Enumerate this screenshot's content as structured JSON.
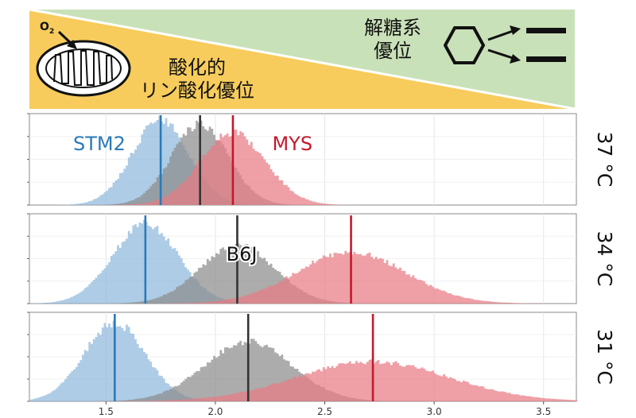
{
  "banner": {
    "left_label_line1": "酸化的",
    "left_label_line2": "リン酸化優位",
    "right_label_line1": "解糖系",
    "right_label_line2": "優位",
    "oxygen_label": "O",
    "oxygen_subscript": "2",
    "left_color": "#f7cc5c",
    "right_color": "#c9e1b8",
    "left_icon": "mitochondrion-icon",
    "right_icon": "glucose-hexagon-to-fragments-icon"
  },
  "colors": {
    "STM2": "#2a7ab8",
    "B6J": "#333333",
    "MYS": "#c4192b",
    "STM2_fill": "#8fb9dc",
    "B6J_fill": "#8c8c8c",
    "MYS_fill": "#e77c84"
  },
  "chart_data": {
    "type": "histogram",
    "x_ticks": [
      "1.5",
      "2.0",
      "2.5",
      "3.0",
      "3.5"
    ],
    "x_tick_values": [
      1.5,
      2.0,
      2.5,
      3.0,
      3.5
    ],
    "xlim": [
      1.15,
      3.65
    ],
    "grid": true,
    "panels": [
      {
        "label": "37 °C",
        "series": [
          {
            "name": "STM2",
            "mean": 1.75,
            "sd": 0.13,
            "peak": 1.0,
            "median_line": 1.75,
            "label_shown": true
          },
          {
            "name": "B6J",
            "mean": 1.93,
            "sd": 0.13,
            "peak": 0.95,
            "median_line": 1.93,
            "label_shown": false
          },
          {
            "name": "MYS",
            "mean": 2.08,
            "sd": 0.15,
            "peak": 0.85,
            "median_line": 2.08,
            "label_shown": true
          }
        ]
      },
      {
        "label": "34 °C",
        "series": [
          {
            "name": "STM2",
            "mean": 1.68,
            "sd": 0.15,
            "peak": 0.95,
            "median_line": 1.68,
            "label_shown": false
          },
          {
            "name": "B6J",
            "mean": 2.1,
            "sd": 0.17,
            "peak": 0.7,
            "median_line": 2.1,
            "label_shown": true
          },
          {
            "name": "MYS",
            "mean": 2.62,
            "sd": 0.25,
            "peak": 0.62,
            "median_line": 2.62,
            "label_shown": false
          }
        ]
      },
      {
        "label": "31 °C",
        "series": [
          {
            "name": "STM2",
            "mean": 1.54,
            "sd": 0.14,
            "peak": 0.95,
            "median_line": 1.54,
            "label_shown": false
          },
          {
            "name": "B6J",
            "mean": 2.15,
            "sd": 0.2,
            "peak": 0.72,
            "median_line": 2.15,
            "label_shown": false
          },
          {
            "name": "MYS",
            "mean": 2.72,
            "sd": 0.35,
            "peak": 0.48,
            "median_line": 2.72,
            "label_shown": false
          }
        ]
      }
    ]
  }
}
